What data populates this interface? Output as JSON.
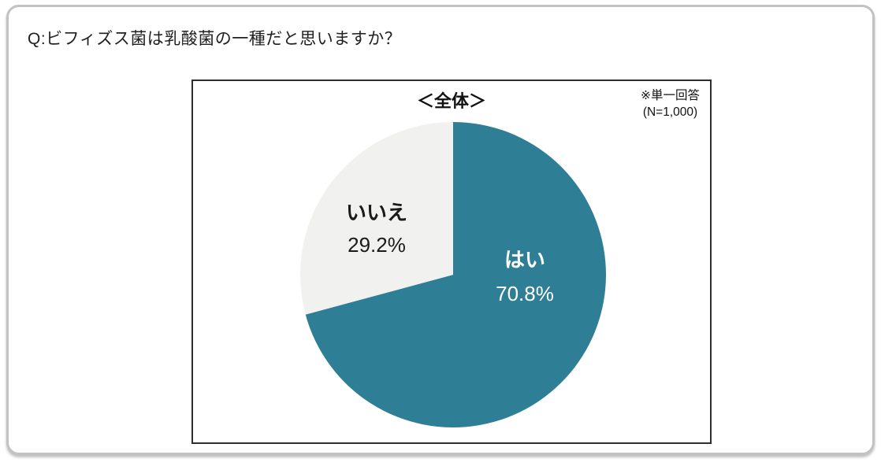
{
  "page": {
    "question": "Q:ビフィズス菌は乳酸菌の一種だと思いますか？"
  },
  "chart_data": {
    "type": "pie",
    "title": "＜全体＞",
    "note_line1": "※単一回答",
    "note_line2": "(N=1,000)",
    "categories": [
      "はい",
      "いいえ"
    ],
    "values": [
      70.8,
      29.2
    ],
    "slices": [
      {
        "label": "はい",
        "value": 70.8,
        "value_label": "70.8%",
        "color": "#2E7F96",
        "text_color": "#FFFFFF"
      },
      {
        "label": "いいえ",
        "value": 29.2,
        "value_label": "29.2%",
        "color": "#F1F1EF",
        "text_color": "#1A1A1A"
      }
    ],
    "start_angle_deg": -90,
    "direction": "clockwise",
    "legend": "none"
  },
  "colors": {
    "accent_teal": "#2E7F96",
    "slice_gray": "#F1F1EF",
    "outer_border": "#C2C2C2",
    "inner_border": "#2E2E2E"
  }
}
